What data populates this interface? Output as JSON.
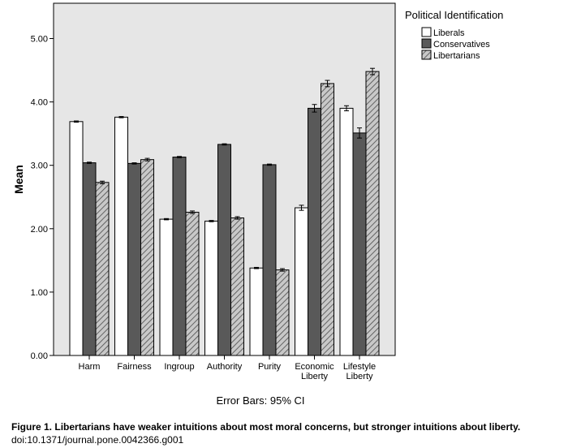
{
  "chart_data": {
    "type": "bar",
    "ylabel": "Mean",
    "xlabel": "Error Bars: 95% CI",
    "ylim": [
      0,
      5.5
    ],
    "yticks": [
      "0.00",
      "1.00",
      "2.00",
      "3.00",
      "4.00",
      "5.00"
    ],
    "categories": [
      "Harm",
      "Fairness",
      "Ingroup",
      "Authority",
      "Purity",
      "Economic Liberty",
      "Lifestyle Liberty"
    ],
    "category_lines": [
      [
        "Harm"
      ],
      [
        "Fairness"
      ],
      [
        "Ingroup"
      ],
      [
        "Authority"
      ],
      [
        "Purity"
      ],
      [
        "Economic",
        "Liberty"
      ],
      [
        "Lifestyle",
        "Liberty"
      ]
    ],
    "legend_title": "Political Identification",
    "legend_position": "right, outside plot",
    "grid": false,
    "series": [
      {
        "name": "Liberals",
        "fill": "#ffffff",
        "pattern": "none",
        "values": [
          3.69,
          3.76,
          2.15,
          2.12,
          1.38,
          2.33,
          3.9
        ],
        "ci": [
          0.01,
          0.01,
          0.01,
          0.01,
          0.01,
          0.04,
          0.04
        ]
      },
      {
        "name": "Conservatives",
        "fill": "#595959",
        "pattern": "none",
        "values": [
          3.04,
          3.03,
          3.13,
          3.33,
          3.01,
          3.9,
          3.51
        ],
        "ci": [
          0.01,
          0.01,
          0.01,
          0.01,
          0.01,
          0.06,
          0.08
        ]
      },
      {
        "name": "Libertarians",
        "fill": "#c8c8c8",
        "pattern": "diagonal-hatch",
        "values": [
          2.73,
          3.09,
          2.26,
          2.17,
          1.35,
          4.29,
          4.48
        ],
        "ci": [
          0.02,
          0.02,
          0.02,
          0.02,
          0.02,
          0.05,
          0.05
        ]
      }
    ]
  },
  "colors": {
    "plot_background": "#e6e6e6",
    "axis": "#000000",
    "hatch_line": "#4a4a4a"
  },
  "caption": {
    "label": "Figure 1.",
    "text": "Libertarians have weaker intuitions about most moral concerns, but stronger intuitions about liberty.",
    "doi": "doi:10.1371/journal.pone.0042366.g001"
  }
}
